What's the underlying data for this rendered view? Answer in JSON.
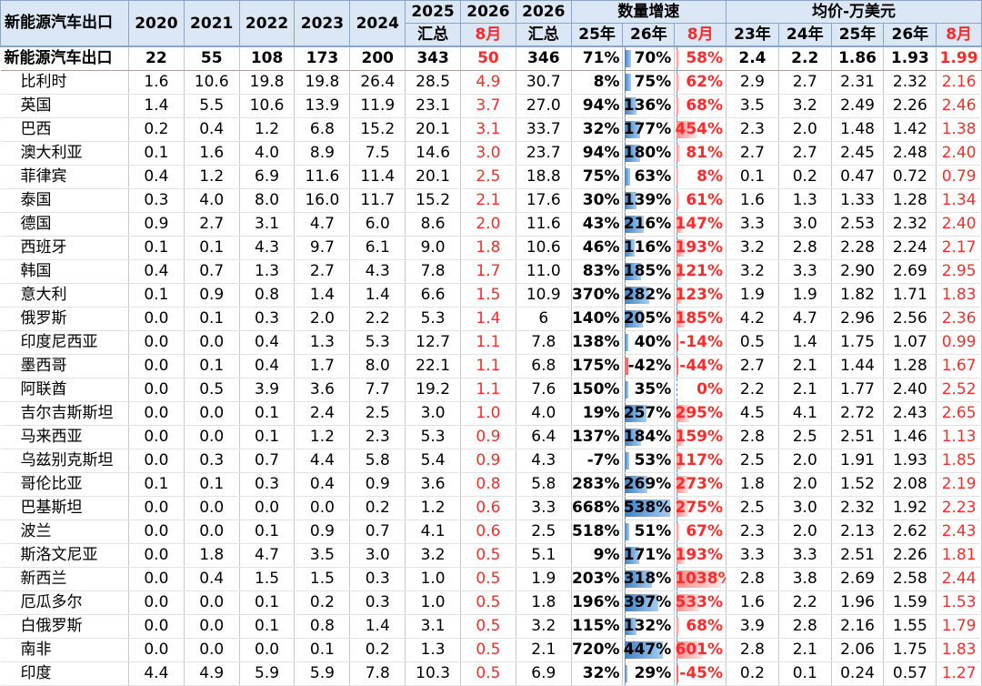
{
  "header": {
    "title": "新能源汽车出口",
    "years": [
      "2020",
      "2021",
      "2022",
      "2023",
      "2024"
    ],
    "c2025": [
      "2025",
      "汇总"
    ],
    "c2026m": [
      "2026",
      "8月"
    ],
    "c2026": [
      "2026",
      "汇总"
    ],
    "growth_group": "数量增速",
    "growth_sub": [
      "25年",
      "26年",
      "8月"
    ],
    "price_group": "均价-万美元",
    "price_sub": [
      "23年",
      "24年",
      "25年",
      "26年",
      "8月"
    ]
  },
  "colors": {
    "accent_red": "#ff2a2a",
    "bar_blue": "#3b82c8",
    "bar_red": "#ff6b6b",
    "header_bg": "#dbe7f5"
  },
  "rows": [
    {
      "name": "新能源汽车出口",
      "v": [
        "22",
        "55",
        "108",
        "173",
        "200",
        "343",
        "50",
        "346"
      ],
      "g": [
        "71%",
        "70%",
        "58%"
      ],
      "gn": [
        71,
        70,
        58
      ],
      "p": [
        "2.4",
        "2.2",
        "1.86",
        "1.93",
        "1.99"
      ]
    },
    {
      "name": "比利时",
      "v": [
        "1.6",
        "10.6",
        "19.8",
        "19.8",
        "26.4",
        "28.5",
        "4.9",
        "30.7"
      ],
      "g": [
        "8%",
        "75%",
        "62%"
      ],
      "gn": [
        8,
        75,
        62
      ],
      "p": [
        "2.9",
        "2.7",
        "2.31",
        "2.32",
        "2.16"
      ]
    },
    {
      "name": "英国",
      "v": [
        "1.4",
        "5.5",
        "10.6",
        "13.9",
        "11.9",
        "23.1",
        "3.7",
        "27.0"
      ],
      "g": [
        "94%",
        "136%",
        "68%"
      ],
      "gn": [
        94,
        136,
        68
      ],
      "p": [
        "3.5",
        "3.2",
        "2.49",
        "2.26",
        "2.46"
      ]
    },
    {
      "name": "巴西",
      "v": [
        "0.2",
        "0.4",
        "1.2",
        "6.8",
        "15.2",
        "20.1",
        "3.1",
        "33.7"
      ],
      "g": [
        "32%",
        "177%",
        "454%"
      ],
      "gn": [
        32,
        177,
        454
      ],
      "p": [
        "2.3",
        "2.0",
        "1.48",
        "1.42",
        "1.38"
      ]
    },
    {
      "name": "澳大利亚",
      "v": [
        "0.1",
        "1.6",
        "4.0",
        "8.9",
        "7.5",
        "14.6",
        "3.0",
        "23.7"
      ],
      "g": [
        "94%",
        "180%",
        "81%"
      ],
      "gn": [
        94,
        180,
        81
      ],
      "p": [
        "2.7",
        "2.7",
        "2.45",
        "2.48",
        "2.40"
      ]
    },
    {
      "name": "菲律宾",
      "v": [
        "0.4",
        "1.2",
        "6.9",
        "11.6",
        "11.4",
        "20.1",
        "2.5",
        "18.8"
      ],
      "g": [
        "75%",
        "63%",
        "8%"
      ],
      "gn": [
        75,
        63,
        8
      ],
      "p": [
        "0.1",
        "0.2",
        "0.47",
        "0.72",
        "0.79"
      ]
    },
    {
      "name": "泰国",
      "v": [
        "0.3",
        "4.0",
        "8.0",
        "16.0",
        "11.7",
        "15.2",
        "2.1",
        "17.6"
      ],
      "g": [
        "30%",
        "139%",
        "61%"
      ],
      "gn": [
        30,
        139,
        61
      ],
      "p": [
        "1.6",
        "1.3",
        "1.33",
        "1.28",
        "1.34"
      ]
    },
    {
      "name": "德国",
      "v": [
        "0.9",
        "2.7",
        "3.1",
        "4.7",
        "6.0",
        "8.6",
        "2.0",
        "11.6"
      ],
      "g": [
        "43%",
        "216%",
        "147%"
      ],
      "gn": [
        43,
        216,
        147
      ],
      "p": [
        "3.3",
        "3.0",
        "2.53",
        "2.32",
        "2.40"
      ]
    },
    {
      "name": "西班牙",
      "v": [
        "0.1",
        "0.1",
        "4.3",
        "9.7",
        "6.1",
        "9.0",
        "1.8",
        "10.6"
      ],
      "g": [
        "46%",
        "116%",
        "193%"
      ],
      "gn": [
        46,
        116,
        193
      ],
      "p": [
        "3.2",
        "2.8",
        "2.28",
        "2.24",
        "2.17"
      ]
    },
    {
      "name": "韩国",
      "v": [
        "0.4",
        "0.7",
        "1.3",
        "2.7",
        "4.3",
        "7.8",
        "1.7",
        "11.0"
      ],
      "g": [
        "83%",
        "185%",
        "121%"
      ],
      "gn": [
        83,
        185,
        121
      ],
      "p": [
        "3.2",
        "3.3",
        "2.90",
        "2.69",
        "2.95"
      ]
    },
    {
      "name": "意大利",
      "v": [
        "0.1",
        "0.9",
        "0.8",
        "1.4",
        "1.4",
        "6.6",
        "1.5",
        "10.9"
      ],
      "g": [
        "370%",
        "282%",
        "123%"
      ],
      "gn": [
        370,
        282,
        123
      ],
      "p": [
        "1.9",
        "1.9",
        "1.82",
        "1.71",
        "1.83"
      ]
    },
    {
      "name": "俄罗斯",
      "v": [
        "0.0",
        "0.1",
        "0.3",
        "2.0",
        "2.2",
        "5.3",
        "1.4",
        "6"
      ],
      "g": [
        "140%",
        "205%",
        "185%"
      ],
      "gn": [
        140,
        205,
        185
      ],
      "p": [
        "4.2",
        "4.7",
        "2.96",
        "2.56",
        "2.36"
      ]
    },
    {
      "name": "印度尼西亚",
      "v": [
        "0.0",
        "0.0",
        "0.4",
        "1.3",
        "5.3",
        "12.7",
        "1.1",
        "7.8"
      ],
      "g": [
        "138%",
        "40%",
        "-14%"
      ],
      "gn": [
        138,
        40,
        -14
      ],
      "p": [
        "0.5",
        "1.4",
        "1.75",
        "1.07",
        "0.99"
      ]
    },
    {
      "name": "墨西哥",
      "v": [
        "0.0",
        "0.1",
        "0.4",
        "1.7",
        "8.0",
        "22.1",
        "1.1",
        "6.8"
      ],
      "g": [
        "175%",
        "-42%",
        "-44%"
      ],
      "gn": [
        175,
        -42,
        -44
      ],
      "p": [
        "2.7",
        "2.1",
        "1.44",
        "1.28",
        "1.67"
      ]
    },
    {
      "name": "阿联酋",
      "v": [
        "0.0",
        "0.5",
        "3.9",
        "3.6",
        "7.7",
        "19.2",
        "1.1",
        "7.6"
      ],
      "g": [
        "150%",
        "35%",
        "0%"
      ],
      "gn": [
        150,
        35,
        0
      ],
      "p": [
        "2.2",
        "2.1",
        "1.77",
        "2.40",
        "2.52"
      ]
    },
    {
      "name": "吉尔吉斯斯坦",
      "v": [
        "0.0",
        "0.0",
        "0.1",
        "2.4",
        "2.5",
        "3.0",
        "1.0",
        "4.0"
      ],
      "g": [
        "19%",
        "257%",
        "295%"
      ],
      "gn": [
        19,
        257,
        295
      ],
      "p": [
        "4.5",
        "4.1",
        "2.72",
        "2.43",
        "2.65"
      ]
    },
    {
      "name": "马来西亚",
      "v": [
        "0.0",
        "0.0",
        "0.1",
        "1.2",
        "2.3",
        "5.3",
        "0.9",
        "6.4"
      ],
      "g": [
        "137%",
        "184%",
        "159%"
      ],
      "gn": [
        137,
        184,
        159
      ],
      "p": [
        "2.8",
        "2.5",
        "2.51",
        "1.46",
        "1.13"
      ]
    },
    {
      "name": "乌兹别克斯坦",
      "v": [
        "0.0",
        "0.3",
        "0.7",
        "4.4",
        "5.8",
        "5.4",
        "0.9",
        "4.3"
      ],
      "g": [
        "-7%",
        "53%",
        "117%"
      ],
      "gn": [
        -7,
        53,
        117
      ],
      "p": [
        "2.5",
        "2.0",
        "1.91",
        "1.93",
        "1.85"
      ]
    },
    {
      "name": "哥伦比亚",
      "v": [
        "0.1",
        "0.1",
        "0.3",
        "0.4",
        "0.9",
        "3.6",
        "0.8",
        "5.8"
      ],
      "g": [
        "283%",
        "269%",
        "273%"
      ],
      "gn": [
        283,
        269,
        273
      ],
      "p": [
        "1.8",
        "2.0",
        "1.52",
        "2.08",
        "2.19"
      ]
    },
    {
      "name": "巴基斯坦",
      "v": [
        "0.0",
        "0.0",
        "0.0",
        "0.0",
        "0.2",
        "1.2",
        "0.6",
        "3.3"
      ],
      "g": [
        "668%",
        "538%",
        "275%"
      ],
      "gn": [
        668,
        538,
        275
      ],
      "p": [
        "2.5",
        "3.0",
        "2.32",
        "1.92",
        "2.23"
      ]
    },
    {
      "name": "波兰",
      "v": [
        "0.0",
        "0.0",
        "0.1",
        "0.9",
        "0.7",
        "4.1",
        "0.6",
        "2.5"
      ],
      "g": [
        "518%",
        "51%",
        "67%"
      ],
      "gn": [
        518,
        51,
        67
      ],
      "p": [
        "2.3",
        "2.0",
        "2.13",
        "2.62",
        "2.43"
      ]
    },
    {
      "name": "斯洛文尼亚",
      "v": [
        "0.0",
        "1.8",
        "4.7",
        "3.5",
        "3.0",
        "3.2",
        "0.5",
        "5.1"
      ],
      "g": [
        "9%",
        "171%",
        "193%"
      ],
      "gn": [
        9,
        171,
        193
      ],
      "p": [
        "3.3",
        "3.3",
        "2.51",
        "2.26",
        "1.81"
      ]
    },
    {
      "name": "新西兰",
      "v": [
        "0.0",
        "0.4",
        "1.5",
        "1.5",
        "0.3",
        "1.0",
        "0.5",
        "1.9"
      ],
      "g": [
        "203%",
        "318%",
        "1038%"
      ],
      "gn": [
        203,
        318,
        1038
      ],
      "p": [
        "2.8",
        "3.8",
        "2.69",
        "2.58",
        "2.44"
      ]
    },
    {
      "name": "厄瓜多尔",
      "v": [
        "0.0",
        "0.0",
        "0.1",
        "0.2",
        "0.3",
        "1.0",
        "0.5",
        "1.8"
      ],
      "g": [
        "196%",
        "397%",
        "533%"
      ],
      "gn": [
        196,
        397,
        533
      ],
      "p": [
        "1.6",
        "2.2",
        "1.96",
        "1.59",
        "1.53"
      ]
    },
    {
      "name": "白俄罗斯",
      "v": [
        "0.0",
        "0.0",
        "0.1",
        "0.8",
        "1.4",
        "3.1",
        "0.5",
        "3.2"
      ],
      "g": [
        "115%",
        "132%",
        "68%"
      ],
      "gn": [
        115,
        132,
        68
      ],
      "p": [
        "3.9",
        "2.8",
        "2.16",
        "1.55",
        "1.79"
      ]
    },
    {
      "name": "南非",
      "v": [
        "0.0",
        "0.0",
        "0.0",
        "0.1",
        "0.2",
        "1.3",
        "0.5",
        "2.1"
      ],
      "g": [
        "720%",
        "447%",
        "601%"
      ],
      "gn": [
        720,
        447,
        601
      ],
      "p": [
        "2.8",
        "2.1",
        "2.06",
        "1.75",
        "1.83"
      ]
    },
    {
      "name": "印度",
      "v": [
        "4.4",
        "4.9",
        "5.9",
        "5.9",
        "7.8",
        "10.3",
        "0.5",
        "6.9"
      ],
      "g": [
        "32%",
        "29%",
        "-45%"
      ],
      "gn": [
        32,
        29,
        -45
      ],
      "p": [
        "0.2",
        "0.1",
        "0.24",
        "0.57",
        "1.27"
      ]
    }
  ]
}
